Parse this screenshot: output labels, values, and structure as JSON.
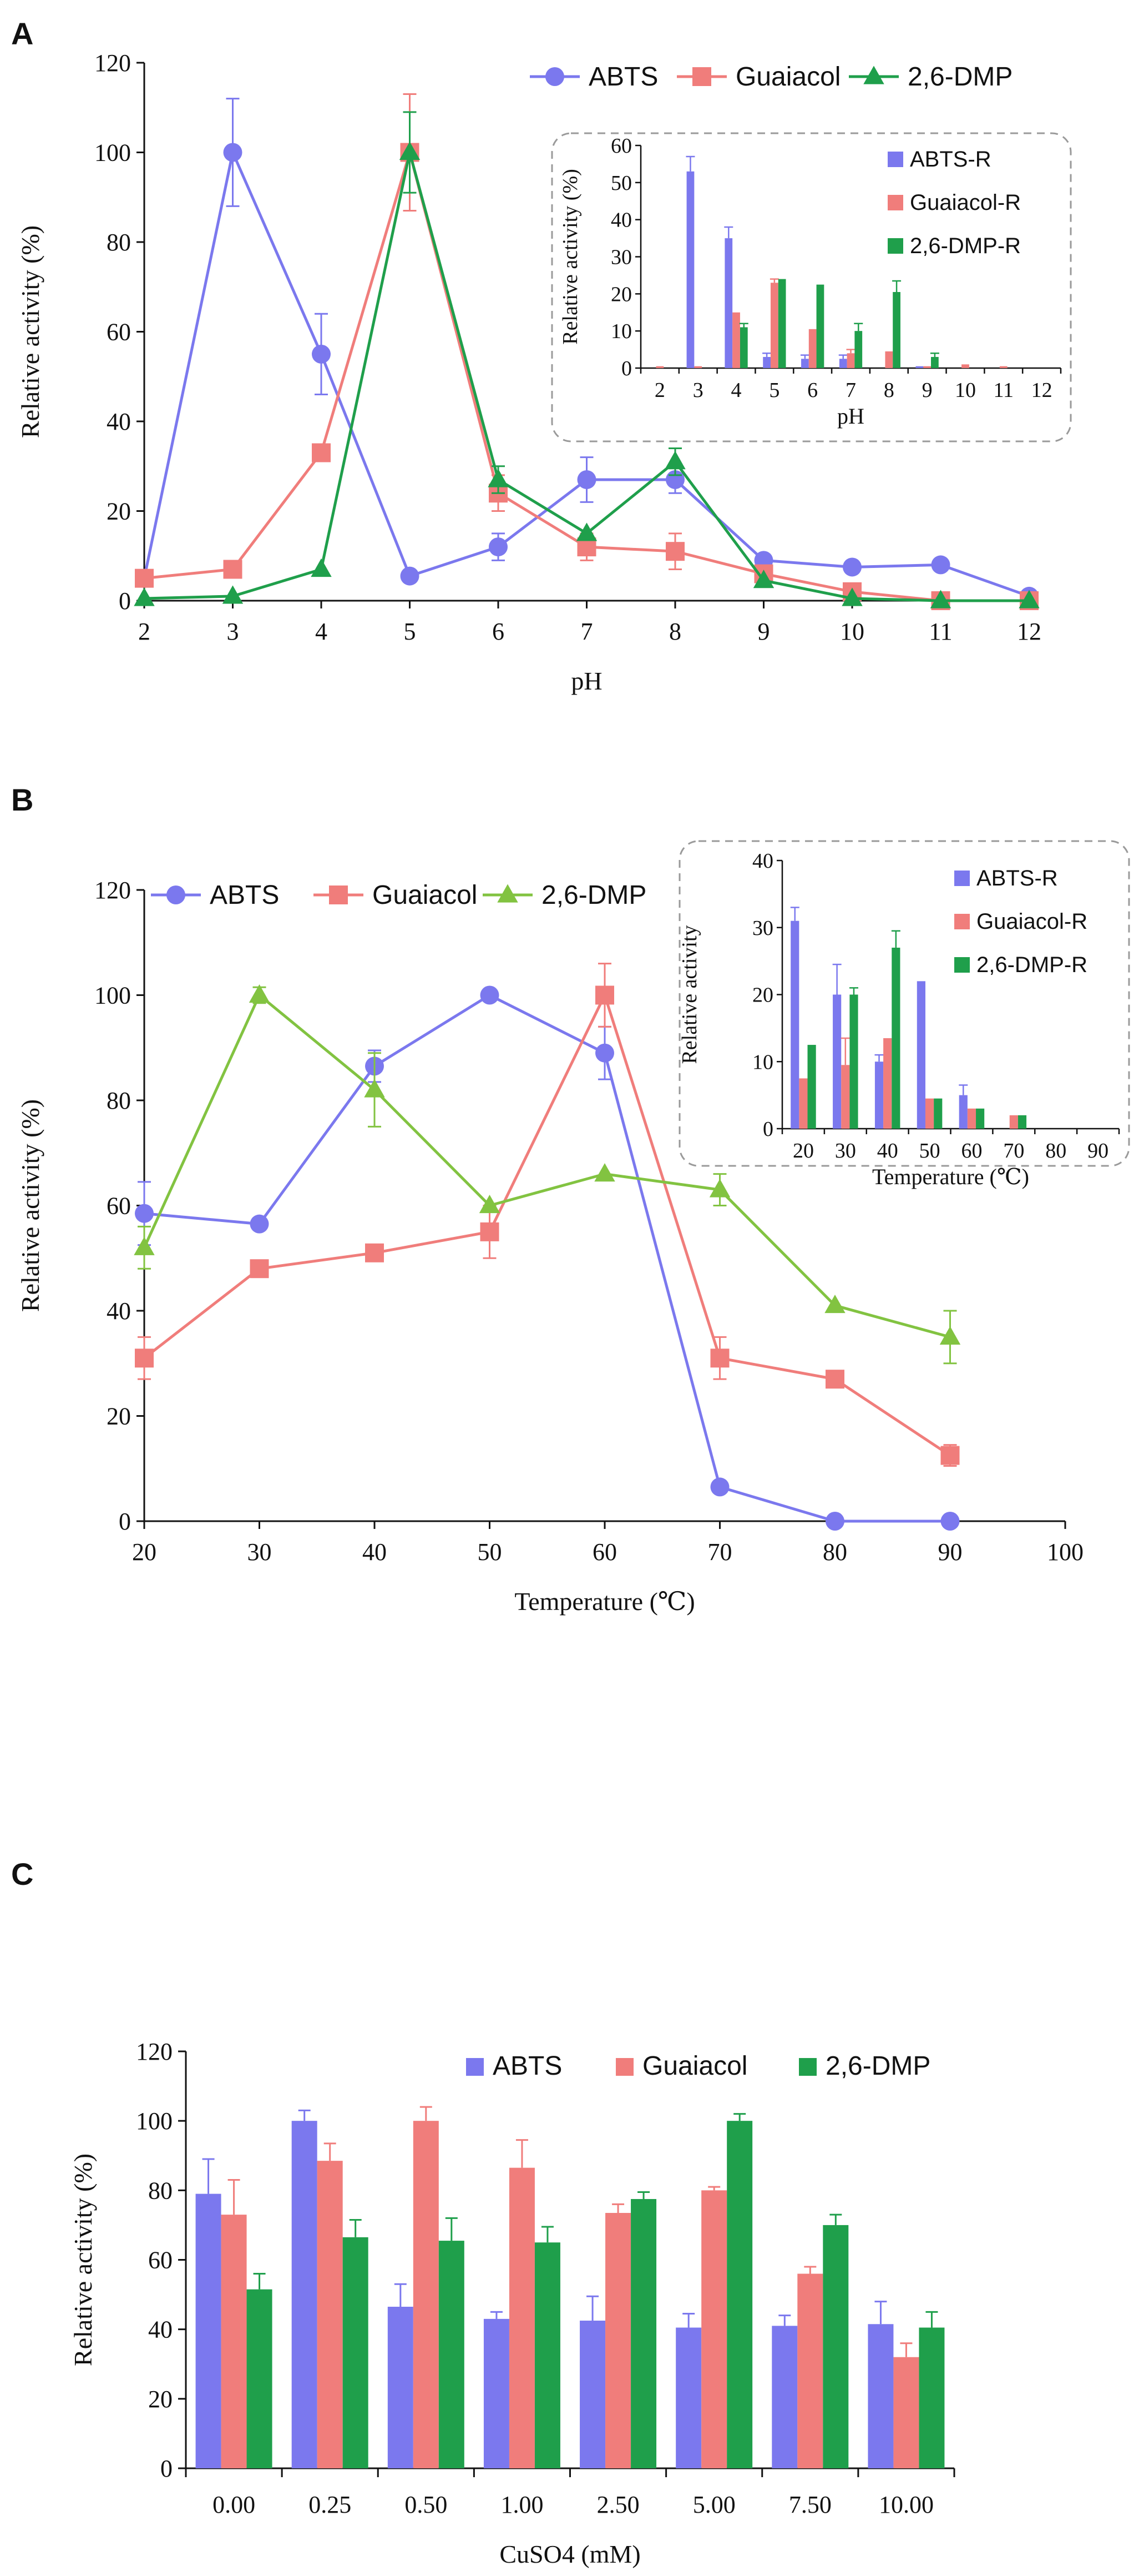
{
  "chart_data": [
    {
      "type": "line",
      "panel_label": "A",
      "title": "",
      "xlabel": "pH",
      "ylabel": "Relative activity (%)",
      "xlim": [
        2,
        12
      ],
      "ylim": [
        0,
        120
      ],
      "xticks": [
        2,
        3,
        4,
        5,
        6,
        7,
        8,
        9,
        10,
        11,
        12
      ],
      "yticks": [
        0,
        20,
        40,
        60,
        80,
        100,
        120
      ],
      "legend_position": "top",
      "series": [
        {
          "name": "ABTS",
          "color": "#7b78ee",
          "marker": "circle",
          "x": [
            2,
            3,
            4,
            5,
            6,
            7,
            8,
            9,
            10,
            11,
            12
          ],
          "y": [
            5,
            100,
            55,
            5.5,
            12,
            27,
            27,
            9,
            7.5,
            8,
            1
          ],
          "err": [
            0,
            12,
            9,
            0,
            3,
            5,
            3,
            0,
            0,
            0,
            0
          ]
        },
        {
          "name": "Guaiacol",
          "color": "#f07d7b",
          "marker": "square",
          "x": [
            2,
            3,
            4,
            5,
            6,
            7,
            8,
            9,
            10,
            11,
            12
          ],
          "y": [
            5,
            7,
            33,
            100,
            24,
            12,
            11,
            6,
            2,
            0,
            0
          ],
          "err": [
            0,
            0,
            0,
            13,
            4,
            3,
            4,
            0,
            0,
            0,
            0
          ]
        },
        {
          "name": "2,6-DMP",
          "color": "#1f9f4b",
          "marker": "triangle",
          "x": [
            2,
            3,
            4,
            5,
            6,
            7,
            8,
            9,
            10,
            11,
            12
          ],
          "y": [
            0.5,
            1,
            7,
            100,
            27,
            15,
            31,
            4.5,
            0.5,
            0,
            0
          ],
          "err": [
            0,
            0,
            0,
            9,
            3,
            0,
            3,
            0,
            0,
            0,
            0
          ]
        }
      ],
      "inset": {
        "type": "bar",
        "xlabel": "pH",
        "ylabel": "Relative activity (%)",
        "ylim": [
          0,
          60
        ],
        "yticks": [
          0,
          10,
          20,
          30,
          40,
          50,
          60
        ],
        "categories": [
          "2",
          "3",
          "4",
          "5",
          "6",
          "7",
          "8",
          "9",
          "10",
          "11",
          "12"
        ],
        "series": [
          {
            "name": "ABTS-R",
            "color": "#7b78ee",
            "values": [
              0,
              53,
              35,
              3,
              2.5,
              2.5,
              0,
              0.5,
              0,
              0,
              0
            ],
            "err": [
              0,
              4,
              3,
              1,
              1,
              1,
              0,
              0,
              0,
              0,
              0
            ]
          },
          {
            "name": "Guaiacol-R",
            "color": "#f07d7b",
            "values": [
              0.5,
              0.5,
              15,
              23,
              10.5,
              4,
              4.5,
              0.5,
              1,
              0.5,
              0
            ],
            "err": [
              0,
              0,
              0,
              1,
              0,
              1,
              0,
              0,
              0,
              0,
              0
            ]
          },
          {
            "name": "2,6-DMP-R",
            "color": "#1f9f4b",
            "values": [
              0,
              0,
              11,
              24,
              22.5,
              10,
              20.5,
              3,
              0,
              0,
              0
            ],
            "err": [
              0,
              0,
              1,
              0,
              0,
              2,
              3,
              1,
              0,
              0,
              0
            ]
          }
        ]
      }
    },
    {
      "type": "line",
      "panel_label": "B",
      "title": "",
      "xlabel": "Temperature (℃)",
      "ylabel": "Relative activity (%)",
      "xlim": [
        20,
        100
      ],
      "ylim": [
        0,
        120
      ],
      "xticks": [
        20,
        30,
        40,
        50,
        60,
        70,
        80,
        90,
        100
      ],
      "yticks": [
        0,
        20,
        40,
        60,
        80,
        100,
        120
      ],
      "legend_position": "top-left",
      "series": [
        {
          "name": "ABTS",
          "color": "#7b78ee",
          "marker": "circle",
          "x": [
            20,
            30,
            40,
            50,
            60,
            70,
            80,
            90
          ],
          "y": [
            58.5,
            56.5,
            86.5,
            100,
            89,
            6.5,
            0,
            0
          ],
          "err": [
            6,
            0,
            3,
            0,
            5,
            0,
            0,
            0
          ]
        },
        {
          "name": "Guaiacol",
          "color": "#f07d7b",
          "marker": "square",
          "x": [
            20,
            30,
            40,
            50,
            60,
            70,
            80,
            90
          ],
          "y": [
            31,
            48,
            51,
            55,
            100,
            31,
            27,
            12.5
          ],
          "err": [
            4,
            0,
            0,
            5,
            6,
            4,
            0,
            2
          ]
        },
        {
          "name": "2,6-DMP",
          "color": "#82c341",
          "marker": "triangle",
          "x": [
            20,
            30,
            40,
            50,
            60,
            70,
            80,
            90
          ],
          "y": [
            52,
            100,
            82,
            60,
            66,
            63,
            41,
            35
          ],
          "err": [
            4,
            1.5,
            7,
            0,
            0,
            3,
            0,
            5
          ]
        }
      ],
      "inset": {
        "type": "bar",
        "xlabel": "Temperature (℃)",
        "ylabel": "Relative activity",
        "ylim": [
          0,
          40
        ],
        "yticks": [
          0,
          10,
          20,
          30,
          40
        ],
        "categories": [
          "20",
          "30",
          "40",
          "50",
          "60",
          "70",
          "80",
          "90"
        ],
        "series": [
          {
            "name": "ABTS-R",
            "color": "#7b78ee",
            "values": [
              31,
              20,
              10,
              22,
              5,
              0,
              0,
              0
            ],
            "err": [
              2,
              4.5,
              1,
              0,
              1.5,
              0,
              0,
              0
            ]
          },
          {
            "name": "Guaiacol-R",
            "color": "#f07d7b",
            "values": [
              7.5,
              9.5,
              13.5,
              4.5,
              3,
              2,
              0,
              0
            ],
            "err": [
              0,
              4,
              0,
              0,
              0,
              0,
              0,
              0
            ]
          },
          {
            "name": "2,6-DMP-R",
            "color": "#1f9f4b",
            "values": [
              12.5,
              20,
              27,
              4.5,
              3,
              2,
              0,
              0
            ],
            "err": [
              0,
              1,
              2.5,
              0,
              0,
              0,
              0,
              0
            ]
          }
        ]
      }
    },
    {
      "type": "bar",
      "panel_label": "C",
      "title": "",
      "xlabel": "CuSO4 (mM)",
      "ylabel": "Relative activity (%)",
      "ylim": [
        0,
        120
      ],
      "yticks": [
        0,
        20,
        40,
        60,
        80,
        100,
        120
      ],
      "legend_position": "top-right",
      "categories": [
        "0.00",
        "0.25",
        "0.50",
        "1.00",
        "2.50",
        "5.00",
        "7.50",
        "10.00"
      ],
      "series": [
        {
          "name": "ABTS",
          "color": "#7b78ee",
          "values": [
            79,
            100,
            46.5,
            43,
            42.5,
            40.5,
            41,
            41.5
          ],
          "err": [
            10,
            3,
            6.5,
            2,
            7,
            4,
            3,
            6.5
          ]
        },
        {
          "name": "Guaiacol",
          "color": "#f07d7b",
          "values": [
            73,
            88.5,
            100,
            86.5,
            73.5,
            80,
            56,
            32
          ],
          "err": [
            10,
            5,
            4,
            8,
            2.5,
            1,
            2,
            4
          ]
        },
        {
          "name": "2,6-DMP",
          "color": "#1f9f4b",
          "values": [
            51.5,
            66.5,
            65.5,
            65,
            77.5,
            100,
            70,
            40.5
          ],
          "err": [
            4.5,
            5,
            6.5,
            4.5,
            2,
            2,
            3,
            4.5
          ]
        }
      ]
    }
  ]
}
